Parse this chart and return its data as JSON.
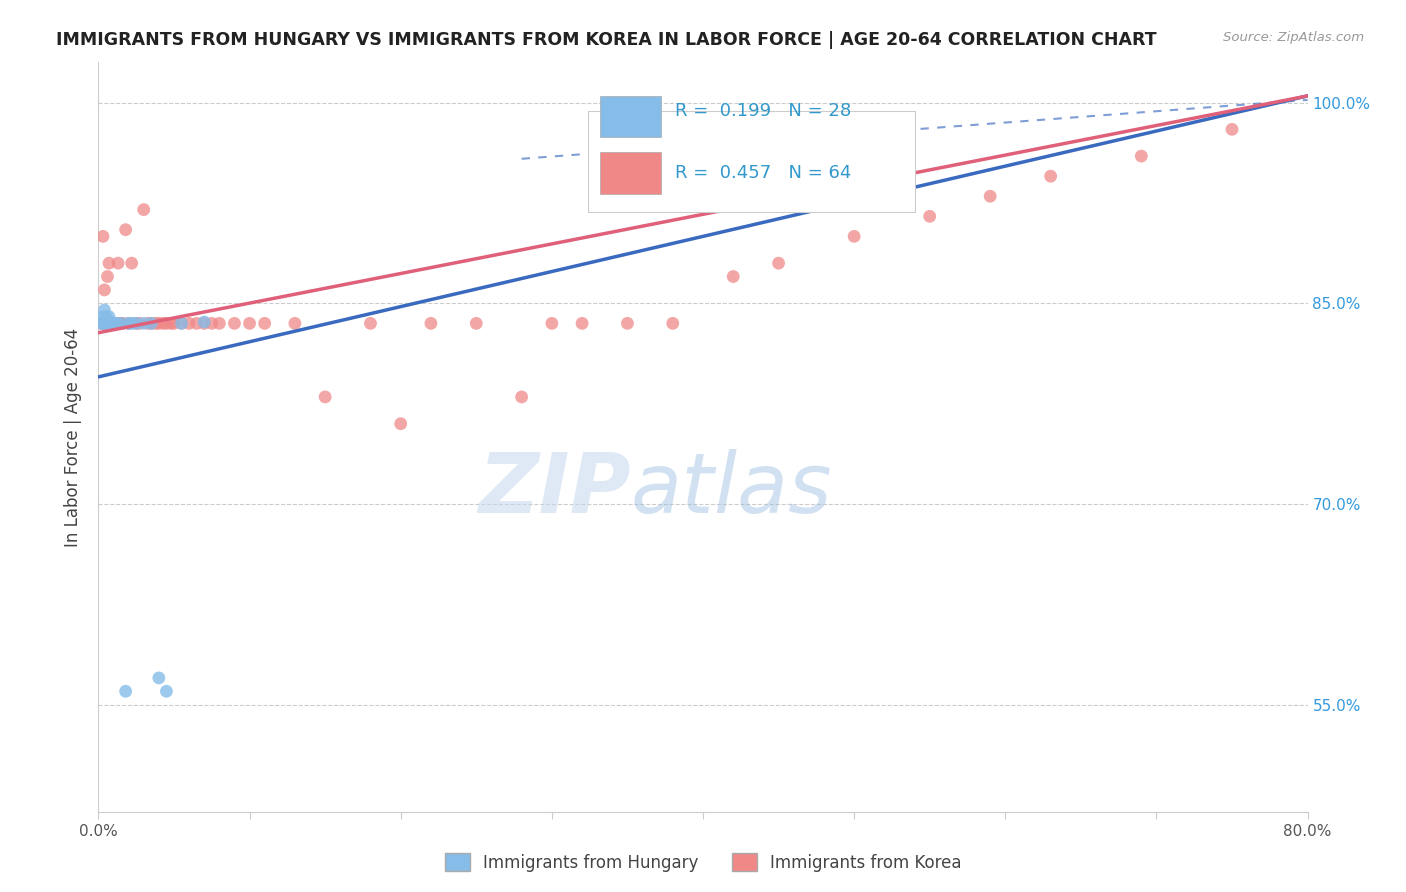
{
  "title": "IMMIGRANTS FROM HUNGARY VS IMMIGRANTS FROM KOREA IN LABOR FORCE | AGE 20-64 CORRELATION CHART",
  "source": "Source: ZipAtlas.com",
  "ylabel": "In Labor Force | Age 20-64",
  "xlim": [
    0.0,
    0.8
  ],
  "ylim": [
    0.47,
    1.03
  ],
  "ytick_right_vals": [
    0.55,
    0.7,
    0.85,
    1.0
  ],
  "ytick_right_labels": [
    "55.0%",
    "70.0%",
    "85.0%",
    "100.0%"
  ],
  "legend_hungary": "Immigrants from Hungary",
  "legend_korea": "Immigrants from Korea",
  "r_hungary": 0.199,
  "n_hungary": 28,
  "r_korea": 0.457,
  "n_korea": 64,
  "hungary_color": "#85bce8",
  "korea_color": "#f08888",
  "hungary_line_color": "#3a6abf",
  "korea_line_color": "#e0607a",
  "watermark_zip": "ZIP",
  "watermark_atlas": "atlas",
  "hungary_x": [
    0.002,
    0.003,
    0.003,
    0.004,
    0.004,
    0.005,
    0.005,
    0.006,
    0.006,
    0.007,
    0.007,
    0.008,
    0.008,
    0.009,
    0.01,
    0.011,
    0.012,
    0.015,
    0.018,
    0.02,
    0.022,
    0.025,
    0.03,
    0.035,
    0.04,
    0.045,
    0.055,
    0.07
  ],
  "hungary_y": [
    0.835,
    0.84,
    0.835,
    0.835,
    0.845,
    0.835,
    0.84,
    0.838,
    0.835,
    0.835,
    0.84,
    0.835,
    0.835,
    0.835,
    0.835,
    0.835,
    0.835,
    0.835,
    0.56,
    0.835,
    0.835,
    0.835,
    0.835,
    0.835,
    0.57,
    0.56,
    0.835,
    0.836
  ],
  "korea_x": [
    0.002,
    0.003,
    0.003,
    0.004,
    0.004,
    0.005,
    0.005,
    0.006,
    0.006,
    0.007,
    0.007,
    0.008,
    0.008,
    0.009,
    0.01,
    0.01,
    0.011,
    0.012,
    0.013,
    0.014,
    0.015,
    0.016,
    0.018,
    0.02,
    0.022,
    0.025,
    0.027,
    0.03,
    0.033,
    0.035,
    0.038,
    0.04,
    0.043,
    0.045,
    0.048,
    0.05,
    0.055,
    0.06,
    0.065,
    0.07,
    0.075,
    0.08,
    0.09,
    0.1,
    0.11,
    0.13,
    0.15,
    0.18,
    0.2,
    0.22,
    0.25,
    0.28,
    0.3,
    0.32,
    0.35,
    0.38,
    0.42,
    0.45,
    0.5,
    0.55,
    0.59,
    0.63,
    0.69,
    0.75
  ],
  "korea_y": [
    0.835,
    0.835,
    0.9,
    0.835,
    0.86,
    0.835,
    0.835,
    0.835,
    0.87,
    0.835,
    0.88,
    0.835,
    0.835,
    0.835,
    0.835,
    0.835,
    0.835,
    0.835,
    0.88,
    0.835,
    0.835,
    0.835,
    0.905,
    0.835,
    0.88,
    0.835,
    0.835,
    0.92,
    0.835,
    0.835,
    0.835,
    0.835,
    0.835,
    0.835,
    0.835,
    0.835,
    0.835,
    0.835,
    0.835,
    0.835,
    0.835,
    0.835,
    0.835,
    0.835,
    0.835,
    0.835,
    0.78,
    0.835,
    0.76,
    0.835,
    0.835,
    0.78,
    0.835,
    0.835,
    0.835,
    0.835,
    0.87,
    0.88,
    0.9,
    0.915,
    0.93,
    0.945,
    0.96,
    0.98
  ],
  "hungary_line_x0": 0.0,
  "hungary_line_y0": 0.795,
  "hungary_line_x1": 0.8,
  "hungary_line_y1": 1.005,
  "korea_line_x0": 0.0,
  "korea_line_y0": 0.828,
  "korea_line_x1": 0.8,
  "korea_line_y1": 1.005,
  "dash_line_x0": 0.28,
  "dash_line_y0": 0.958,
  "dash_line_x1": 0.8,
  "dash_line_y1": 1.002
}
